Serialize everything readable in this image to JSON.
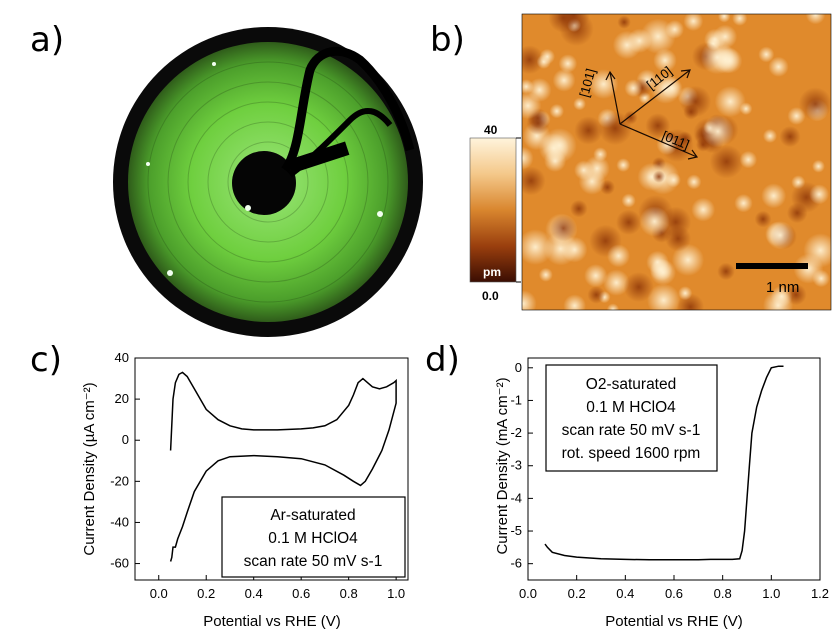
{
  "panels": {
    "a": {
      "letter": "a)"
    },
    "b": {
      "letter": "b)",
      "colorbar": {
        "max_label": "40",
        "unit_label": "pm",
        "min_label": "0.0"
      },
      "directions": [
        "[101]",
        "[110]",
        "[011]"
      ],
      "scale_bar_label": "1 nm",
      "colors": {
        "high": "#fff4dc",
        "mid": "#e08a2c",
        "low": "#3a0d02"
      }
    },
    "c": {
      "letter": "c)"
    },
    "d": {
      "letter": "d)"
    }
  },
  "chart_data": [
    {
      "panel": "c",
      "type": "line",
      "xlabel": "Potential vs RHE (V)",
      "ylabel": "Current Density (µA cm⁻²)",
      "xlim": [
        -0.1,
        1.05
      ],
      "ylim": [
        -68,
        40
      ],
      "xticks": [
        0.0,
        0.2,
        0.4,
        0.6,
        0.8,
        1.0
      ],
      "xtick_labels": [
        "0.0",
        "0.2",
        "0.4",
        "0.6",
        "0.8",
        "1.0"
      ],
      "yticks": [
        -60,
        -40,
        -20,
        0,
        20,
        40
      ],
      "ytick_labels": [
        "-60",
        "-40",
        "-20",
        "0",
        "20",
        "40"
      ],
      "annotation": [
        "Ar-saturated",
        "0.1 M HClO4",
        "scan rate 50 mV s-1"
      ],
      "series": [
        {
          "x": [
            0.05,
            0.06,
            0.07,
            0.085,
            0.1,
            0.12,
            0.15,
            0.2,
            0.25,
            0.3,
            0.35,
            0.4,
            0.5,
            0.6,
            0.65,
            0.7,
            0.75,
            0.8,
            0.82,
            0.84,
            0.86,
            0.88,
            0.9,
            0.93,
            0.96,
            0.99,
            1.0,
            1.0,
            0.97,
            0.94,
            0.9,
            0.87,
            0.85,
            0.82,
            0.78,
            0.7,
            0.6,
            0.5,
            0.4,
            0.3,
            0.25,
            0.2,
            0.15,
            0.12,
            0.1,
            0.08,
            0.07,
            0.06,
            0.055,
            0.05
          ],
          "y": [
            -5,
            20,
            28,
            32,
            33,
            31,
            25,
            15,
            10,
            7,
            5.5,
            5,
            5,
            5.5,
            6,
            7,
            10,
            17,
            22,
            28,
            30,
            28,
            26,
            25,
            26,
            28,
            29,
            18,
            5,
            -5,
            -14,
            -20,
            -22,
            -20,
            -17,
            -12,
            -9,
            -8,
            -7.5,
            -8,
            -10,
            -15,
            -25,
            -35,
            -42,
            -48,
            -52,
            -52,
            -57,
            -59
          ]
        }
      ]
    },
    {
      "panel": "d",
      "type": "line",
      "xlabel": "Potential vs RHE (V)",
      "ylabel": "Current Density (mA cm⁻²)",
      "xlim": [
        0.0,
        1.2
      ],
      "ylim": [
        -6.5,
        0.3
      ],
      "xticks": [
        0.0,
        0.2,
        0.4,
        0.6,
        0.8,
        1.0,
        1.2
      ],
      "xtick_labels": [
        "0.0",
        "0.2",
        "0.4",
        "0.6",
        "0.8",
        "1.0",
        "1.2"
      ],
      "yticks": [
        -6,
        -5,
        -4,
        -3,
        -2,
        -1,
        0
      ],
      "ytick_labels": [
        "-6",
        "-5",
        "-4",
        "-3",
        "-2",
        "-1",
        "0"
      ],
      "annotation": [
        "O2-saturated",
        "0.1 M HClO4",
        "scan rate 50 mV s-1",
        "rot. speed 1600 rpm"
      ],
      "series": [
        {
          "x": [
            0.07,
            0.08,
            0.1,
            0.15,
            0.2,
            0.3,
            0.4,
            0.5,
            0.6,
            0.7,
            0.75,
            0.8,
            0.84,
            0.87,
            0.88,
            0.89,
            0.9,
            0.91,
            0.92,
            0.94,
            0.96,
            0.98,
            1.0,
            1.03,
            1.05
          ],
          "y": [
            -5.4,
            -5.5,
            -5.65,
            -5.75,
            -5.8,
            -5.85,
            -5.87,
            -5.88,
            -5.88,
            -5.88,
            -5.87,
            -5.87,
            -5.87,
            -5.85,
            -5.6,
            -5.0,
            -4.0,
            -3.0,
            -2.0,
            -1.2,
            -0.7,
            -0.3,
            0.0,
            0.05,
            0.05
          ]
        }
      ]
    }
  ]
}
